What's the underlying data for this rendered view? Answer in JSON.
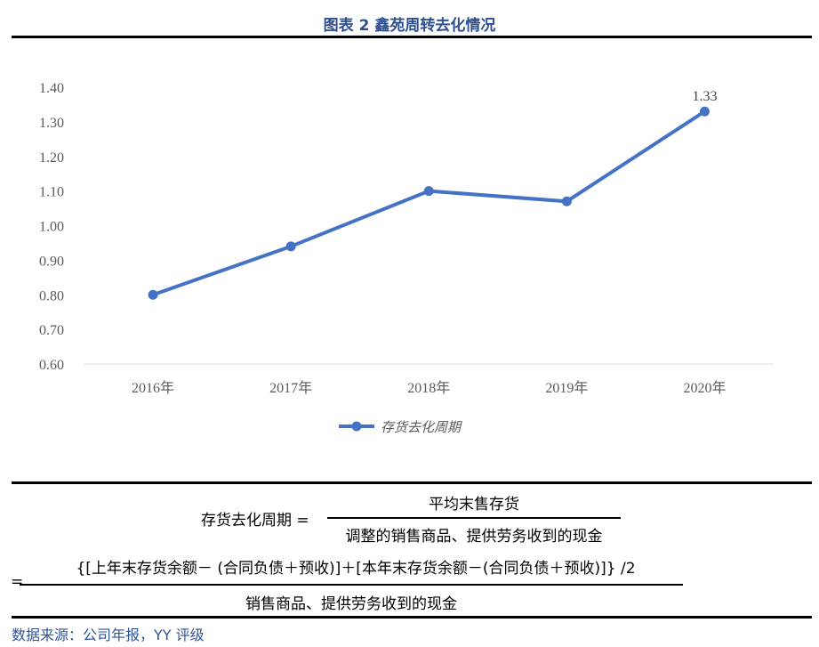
{
  "title": "图表 2 鑫苑周转去化情况",
  "chart_data": {
    "type": "line",
    "categories": [
      "2016年",
      "2017年",
      "2018年",
      "2019年",
      "2020年"
    ],
    "series": [
      {
        "name": "存货去化周期",
        "values": [
          0.8,
          0.94,
          1.1,
          1.07,
          1.33
        ],
        "color": "#4472c4"
      }
    ],
    "data_labels": [
      {
        "index": 4,
        "text": "1.33"
      }
    ],
    "yticks": [
      "0.60",
      "0.70",
      "0.80",
      "0.90",
      "1.00",
      "1.10",
      "1.20",
      "1.30",
      "1.40"
    ],
    "ylim": [
      0.6,
      1.4
    ],
    "grid": false,
    "legend": "bottom"
  },
  "formula": {
    "lhs": "存货去化周期 =",
    "num1": "平均末售存货",
    "den1": "调整的销售商品、提供劳务收到的现金",
    "eq2": "=",
    "num2": "{[上年末存货余额－ (合同负债＋预收)]＋[本年末存货余额－(合同负债＋预收)]} /2",
    "den2": "销售商品、提供劳务收到的现金"
  },
  "source": "数据来源：公司年报，YY 评级"
}
